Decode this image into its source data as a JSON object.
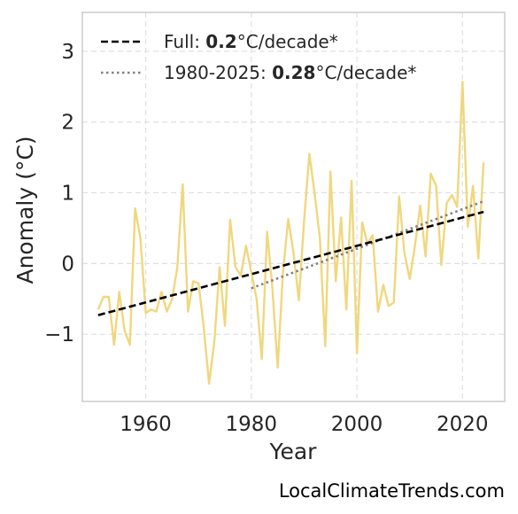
{
  "chart_data": {
    "type": "line",
    "xlabel": "Year",
    "ylabel": "Anomaly (°C)",
    "xlim": [
      1948,
      2028
    ],
    "ylim": [
      -1.95,
      3.55
    ],
    "x_ticks": [
      1960,
      1980,
      2000,
      2020
    ],
    "y_ticks": [
      3,
      2,
      1,
      0,
      -1
    ],
    "y_tick_labels": [
      "3",
      "2",
      "1",
      "0",
      "−1"
    ],
    "grid": true,
    "legend_position": "top-left",
    "colors": {
      "series": "#f0d77e",
      "trend_full": "#000000",
      "trend_recent": "#808080",
      "grid": "#e0e0e0",
      "frame": "#cccccc"
    },
    "series": [
      {
        "x": [
          1951,
          1952,
          1953,
          1954,
          1955,
          1956,
          1957,
          1958,
          1959,
          1960,
          1961,
          1962,
          1963,
          1964,
          1965,
          1966,
          1967,
          1968,
          1969,
          1970,
          1971,
          1972,
          1973,
          1974,
          1975,
          1976,
          1977,
          1978,
          1979,
          1980,
          1981,
          1982,
          1983,
          1984,
          1985,
          1986,
          1987,
          1988,
          1989,
          1990,
          1991,
          1992,
          1993,
          1994,
          1995,
          1996,
          1997,
          1998,
          1999,
          2000,
          2001,
          2002,
          2003,
          2004,
          2005,
          2006,
          2007,
          2008,
          2009,
          2010,
          2011,
          2012,
          2013,
          2014,
          2015,
          2016,
          2017,
          2018,
          2019,
          2020,
          2021,
          2022,
          2023,
          2024
        ],
        "y": [
          -0.65,
          -0.47,
          -0.47,
          -1.15,
          -0.4,
          -0.95,
          -1.15,
          0.78,
          0.35,
          -0.7,
          -0.65,
          -0.68,
          -0.4,
          -0.68,
          -0.5,
          -0.05,
          1.12,
          -0.68,
          -0.25,
          -0.28,
          -0.9,
          -1.7,
          -1.1,
          -0.05,
          -0.88,
          0.62,
          -0.05,
          -0.17,
          0.25,
          -0.12,
          -0.5,
          -1.35,
          0.45,
          -0.35,
          -1.47,
          -0.12,
          0.63,
          0.15,
          -0.52,
          0.6,
          1.55,
          0.98,
          0.35,
          -1.17,
          1.3,
          -0.25,
          0.65,
          -0.65,
          1.17,
          -1.27,
          0.58,
          0.28,
          0.4,
          -0.68,
          -0.3,
          -0.6,
          -0.55,
          0.95,
          0.15,
          -0.22,
          0.25,
          0.82,
          0.1,
          1.27,
          1.1,
          -0.02,
          0.85,
          0.97,
          0.8,
          2.57,
          0.52,
          1.1,
          0.07,
          1.43
        ]
      }
    ],
    "trend_lines": [
      {
        "x": [
          1951,
          2024
        ],
        "y": [
          -0.73,
          0.73
        ]
      },
      {
        "x": [
          1980,
          2024
        ],
        "y": [
          -0.35,
          0.88
        ]
      }
    ],
    "legend": [
      {
        "prefix": "Full: ",
        "value": "0.2",
        "suffix": "°C/decade*"
      },
      {
        "prefix": "1980-2025: ",
        "value": "0.28",
        "suffix": "°C/decade*"
      }
    ],
    "credit": "LocalClimateTrends.com"
  }
}
